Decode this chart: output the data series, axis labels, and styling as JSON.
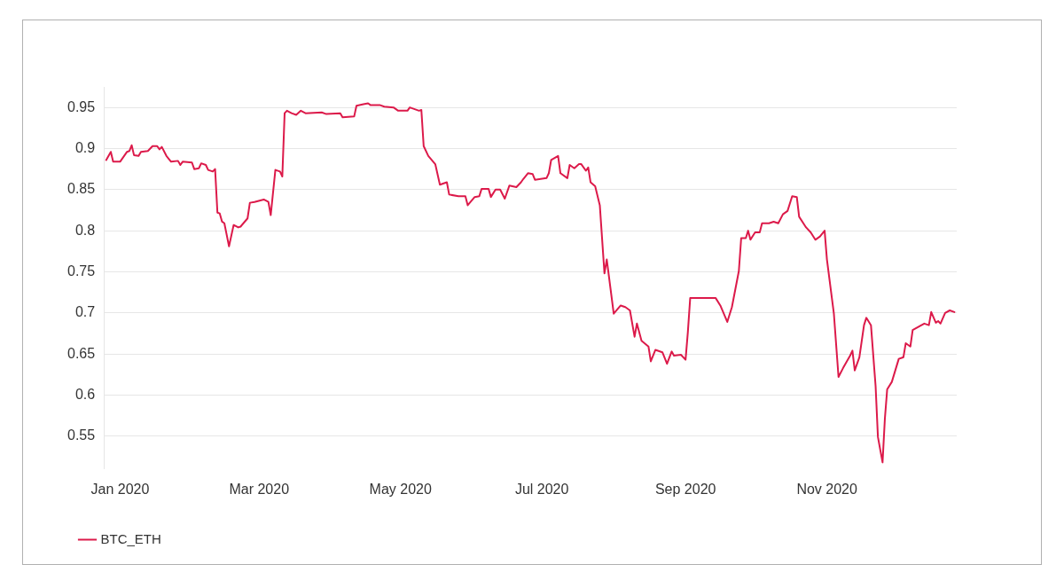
{
  "chart_data": {
    "type": "line",
    "x": [
      "2019-12-26",
      "2019-12-28",
      "2019-12-29",
      "2020-01-01",
      "2020-01-04",
      "2020-01-05",
      "2020-01-06",
      "2020-01-07",
      "2020-01-09",
      "2020-01-10",
      "2020-01-13",
      "2020-01-15",
      "2020-01-17",
      "2020-01-18",
      "2020-01-19",
      "2020-01-21",
      "2020-01-23",
      "2020-01-26",
      "2020-01-27",
      "2020-01-28",
      "2020-02-01",
      "2020-02-02",
      "2020-02-04",
      "2020-02-05",
      "2020-02-07",
      "2020-02-08",
      "2020-02-10",
      "2020-02-11",
      "2020-02-12",
      "2020-02-13",
      "2020-02-14",
      "2020-02-15",
      "2020-02-17",
      "2020-02-19",
      "2020-02-21",
      "2020-02-22",
      "2020-02-25",
      "2020-02-26",
      "2020-02-28",
      "2020-03-03",
      "2020-03-05",
      "2020-03-06",
      "2020-03-08",
      "2020-03-10",
      "2020-03-11",
      "2020-03-12",
      "2020-03-13",
      "2020-03-15",
      "2020-03-17",
      "2020-03-19",
      "2020-03-21",
      "2020-03-28",
      "2020-03-30",
      "2020-04-05",
      "2020-04-06",
      "2020-04-11",
      "2020-04-12",
      "2020-04-15",
      "2020-04-17",
      "2020-04-18",
      "2020-04-22",
      "2020-04-24",
      "2020-04-28",
      "2020-04-30",
      "2020-05-04",
      "2020-05-05",
      "2020-05-09",
      "2020-05-10",
      "2020-05-11",
      "2020-05-13",
      "2020-05-16",
      "2020-05-18",
      "2020-05-21",
      "2020-05-22",
      "2020-05-26",
      "2020-05-29",
      "2020-05-30",
      "2020-06-02",
      "2020-06-04",
      "2020-06-05",
      "2020-06-08",
      "2020-06-09",
      "2020-06-11",
      "2020-06-13",
      "2020-06-15",
      "2020-06-17",
      "2020-06-20",
      "2020-06-22",
      "2020-06-23",
      "2020-06-25",
      "2020-06-27",
      "2020-06-28",
      "2020-07-03",
      "2020-07-04",
      "2020-07-05",
      "2020-07-08",
      "2020-07-09",
      "2020-07-12",
      "2020-07-13",
      "2020-07-15",
      "2020-07-17",
      "2020-07-18",
      "2020-07-20",
      "2020-07-21",
      "2020-07-22",
      "2020-07-24",
      "2020-07-26",
      "2020-07-28",
      "2020-07-29",
      "2020-08-01",
      "2020-08-04",
      "2020-08-06",
      "2020-08-08",
      "2020-08-10",
      "2020-08-11",
      "2020-08-13",
      "2020-08-16",
      "2020-08-17",
      "2020-08-19",
      "2020-08-22",
      "2020-08-24",
      "2020-08-26",
      "2020-08-27",
      "2020-08-30",
      "2020-09-01",
      "2020-09-02",
      "2020-09-03",
      "2020-09-06",
      "2020-09-14",
      "2020-09-16",
      "2020-09-19",
      "2020-09-21",
      "2020-09-24",
      "2020-09-25",
      "2020-09-27",
      "2020-09-28",
      "2020-09-29",
      "2020-10-01",
      "2020-10-03",
      "2020-10-04",
      "2020-10-07",
      "2020-10-09",
      "2020-10-11",
      "2020-10-13",
      "2020-10-15",
      "2020-10-17",
      "2020-10-19",
      "2020-10-20",
      "2020-10-23",
      "2020-10-25",
      "2020-10-27",
      "2020-10-29",
      "2020-10-31",
      "2020-11-01",
      "2020-11-04",
      "2020-11-06",
      "2020-11-08",
      "2020-11-11",
      "2020-11-12",
      "2020-11-13",
      "2020-11-15",
      "2020-11-17",
      "2020-11-18",
      "2020-11-20",
      "2020-11-22",
      "2020-11-23",
      "2020-11-25",
      "2020-11-26",
      "2020-11-27",
      "2020-11-29",
      "2020-12-02",
      "2020-12-04",
      "2020-12-05",
      "2020-12-07",
      "2020-12-08",
      "2020-12-13",
      "2020-12-15",
      "2020-12-16",
      "2020-12-18",
      "2020-12-19",
      "2020-12-20",
      "2020-12-22",
      "2020-12-24",
      "2020-12-26"
    ],
    "series": [
      {
        "name": "BTC_ETH",
        "color": "#dc1a4a",
        "values": [
          0.886,
          0.896,
          0.884,
          0.884,
          0.896,
          0.897,
          0.904,
          0.892,
          0.891,
          0.896,
          0.897,
          0.903,
          0.903,
          0.899,
          0.902,
          0.891,
          0.884,
          0.885,
          0.88,
          0.884,
          0.883,
          0.875,
          0.876,
          0.882,
          0.88,
          0.874,
          0.872,
          0.875,
          0.822,
          0.821,
          0.811,
          0.809,
          0.781,
          0.807,
          0.804,
          0.805,
          0.815,
          0.834,
          0.835,
          0.838,
          0.835,
          0.819,
          0.874,
          0.872,
          0.866,
          0.943,
          0.946,
          0.943,
          0.941,
          0.946,
          0.943,
          0.944,
          0.942,
          0.943,
          0.938,
          0.939,
          0.952,
          0.954,
          0.955,
          0.953,
          0.953,
          0.951,
          0.95,
          0.946,
          0.946,
          0.95,
          0.946,
          0.947,
          0.903,
          0.891,
          0.881,
          0.856,
          0.859,
          0.844,
          0.842,
          0.842,
          0.831,
          0.841,
          0.842,
          0.851,
          0.851,
          0.841,
          0.85,
          0.85,
          0.839,
          0.855,
          0.853,
          0.859,
          0.863,
          0.87,
          0.869,
          0.862,
          0.864,
          0.87,
          0.886,
          0.891,
          0.87,
          0.864,
          0.88,
          0.876,
          0.881,
          0.881,
          0.873,
          0.877,
          0.859,
          0.854,
          0.831,
          0.748,
          0.765,
          0.699,
          0.709,
          0.707,
          0.703,
          0.671,
          0.687,
          0.666,
          0.659,
          0.641,
          0.655,
          0.652,
          0.638,
          0.653,
          0.648,
          0.649,
          0.643,
          0.677,
          0.718,
          0.718,
          0.718,
          0.709,
          0.689,
          0.707,
          0.751,
          0.791,
          0.791,
          0.8,
          0.789,
          0.798,
          0.798,
          0.809,
          0.809,
          0.811,
          0.809,
          0.82,
          0.824,
          0.842,
          0.841,
          0.817,
          0.804,
          0.798,
          0.789,
          0.793,
          0.8,
          0.765,
          0.699,
          0.622,
          0.633,
          0.648,
          0.654,
          0.63,
          0.646,
          0.685,
          0.694,
          0.685,
          0.611,
          0.549,
          0.518,
          0.571,
          0.607,
          0.616,
          0.644,
          0.646,
          0.663,
          0.659,
          0.679,
          0.687,
          0.685,
          0.701,
          0.688,
          0.69,
          0.687,
          0.7,
          0.703,
          0.701
        ]
      }
    ],
    "xlim": [
      "2019-12-25",
      "2020-12-27"
    ],
    "xticks": [
      {
        "value": "2020-01-01",
        "label": "Jan 2020"
      },
      {
        "value": "2020-03-01",
        "label": "Mar 2020"
      },
      {
        "value": "2020-05-01",
        "label": "May 2020"
      },
      {
        "value": "2020-07-01",
        "label": "Jul 2020"
      },
      {
        "value": "2020-09-01",
        "label": "Sep 2020"
      },
      {
        "value": "2020-11-01",
        "label": "Nov 2020"
      }
    ],
    "ylim": [
      0.51,
      0.975
    ],
    "yticks": [
      0.55,
      0.6,
      0.65,
      0.7,
      0.75,
      0.8,
      0.85,
      0.9,
      0.95
    ],
    "grid": "y",
    "legend": "bottom left",
    "marker": "none",
    "line_style": "solid"
  }
}
